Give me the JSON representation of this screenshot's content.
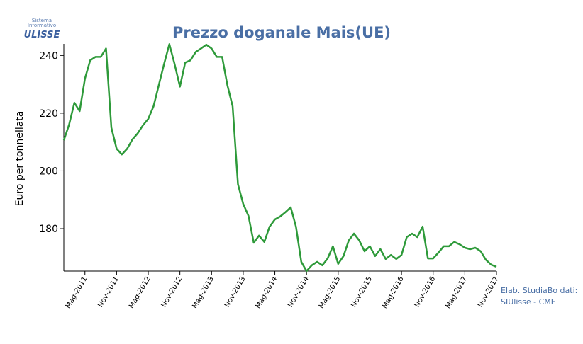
{
  "logo": {
    "line1": "Sistema",
    "line2": "Informativo",
    "name": "ULISSE"
  },
  "source": {
    "line1": "Elab. StudiaBo dati:",
    "line2": "SIUlisse - CME"
  },
  "chart_data": {
    "type": "line",
    "title": "Prezzo doganale Mais(UE)",
    "y_label": "Euro per tonnellata",
    "categories": [
      null,
      null,
      null,
      null,
      "Mag-2011",
      null,
      null,
      null,
      null,
      null,
      "Nov-2011",
      null,
      null,
      null,
      null,
      null,
      "Mag-2012",
      null,
      null,
      null,
      null,
      null,
      "Nov-2012",
      null,
      null,
      null,
      null,
      null,
      "Mag-2013",
      null,
      null,
      null,
      null,
      null,
      "Nov-2013",
      null,
      null,
      null,
      null,
      null,
      "Mag-2014",
      null,
      null,
      null,
      null,
      null,
      "Nov-2014",
      null,
      null,
      null,
      null,
      null,
      "Mag-2015",
      null,
      null,
      null,
      null,
      null,
      "Nov-2015",
      null,
      null,
      null,
      null,
      null,
      "Mag-2016",
      null,
      null,
      null,
      null,
      null,
      "Nov-2016",
      null,
      null,
      null,
      null,
      null,
      "Mag-2017",
      null,
      null,
      null,
      null,
      null,
      "Nov-2017"
    ],
    "series": [
      {
        "name": "Mais",
        "color": "#2e9a3a",
        "values": [
          210.6,
          216,
          223.6,
          220.7,
          232,
          238.3,
          239.5,
          239.5,
          242.4,
          215,
          207.7,
          205.7,
          207.7,
          210.9,
          213,
          215.8,
          218,
          222.4,
          229.7,
          237,
          243.9,
          237,
          229.2,
          237.5,
          238.3,
          241.2,
          242.4,
          243.7,
          242.4,
          239.5,
          239.5,
          229.7,
          222.4,
          195.4,
          188.6,
          184.4,
          175.1,
          177.6,
          175.4,
          180.7,
          183.2,
          184.2,
          185.7,
          187.4,
          180.7,
          168.5,
          165.3,
          167.3,
          168.5,
          167.3,
          169.7,
          173.9,
          167.8,
          170.5,
          175.9,
          178.3,
          175.9,
          172.2,
          173.9,
          170.5,
          172.9,
          169.5,
          170.9,
          169.5,
          170.9,
          177.1,
          178.3,
          177.1,
          180.7,
          169.7,
          169.7,
          171.7,
          173.9,
          173.9,
          175.4,
          174.6,
          173.4,
          172.9,
          173.4,
          172.2,
          169.2,
          167.5,
          166.8
        ]
      }
    ],
    "ylim": [
      165.3,
      244
    ],
    "yticks": [
      180,
      200,
      220,
      240
    ],
    "grid": false
  }
}
